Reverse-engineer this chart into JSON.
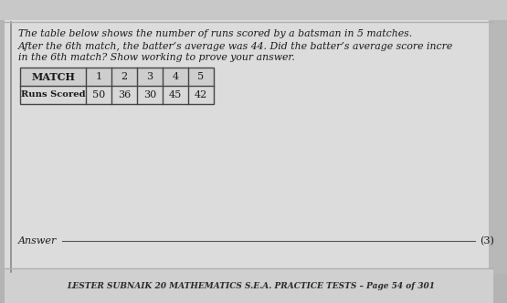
{
  "outer_bg": "#a8a8a8",
  "top_strip_color": "#c0c0c0",
  "page_bg": "#d4d4d4",
  "content_bg": "#e2e2e2",
  "line1": "The table below shows the number of runs scored by a batsman in 5 matches.",
  "line2a": "After the 6th match, the batter’s average was 44. Did the batter’s average score incre",
  "line2b": "in the 6th match? Show working to prove your answer.",
  "match_label": "MATCH",
  "runs_label": "Runs Scored",
  "match_numbers": [
    "1",
    "2",
    "3",
    "4",
    "5"
  ],
  "runs_scored": [
    "50",
    "36",
    "30",
    "45",
    "42"
  ],
  "answer_label": "Answer",
  "answer_marks": "(3)",
  "footer": "LESTER SUBNAIK 20 MATHEMATICS S.E.A. PRACTICE TESTS – Page 54 of 301",
  "table_border_color": "#444444",
  "text_color": "#1a1a1a",
  "footer_color": "#2a2a2a",
  "left_border_color": "#888888",
  "separator_color": "#999999"
}
